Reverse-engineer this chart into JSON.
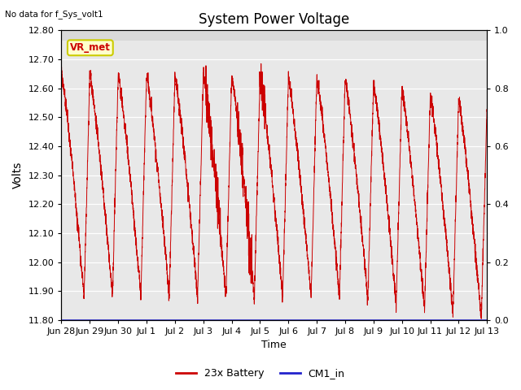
{
  "title": "System Power Voltage",
  "no_data_label": "No data for f_Sys_volt1",
  "ylabel_left": "Volts",
  "xlabel": "Time",
  "ylim_left": [
    11.8,
    12.8
  ],
  "ylim_right": [
    0.0,
    1.0
  ],
  "yticks_left": [
    11.8,
    11.9,
    12.0,
    12.1,
    12.2,
    12.3,
    12.4,
    12.5,
    12.6,
    12.7,
    12.8
  ],
  "yticks_right": [
    0.0,
    0.2,
    0.4,
    0.6,
    0.8,
    1.0
  ],
  "xtick_labels": [
    "Jun 28",
    "Jun 29",
    "Jun 30",
    "Jul 1",
    "Jul 2",
    "Jul 3",
    "Jul 4",
    "Jul 5",
    "Jul 6",
    "Jul 7",
    "Jul 8",
    "Jul 9",
    "Jul 10",
    "Jul 11",
    "Jul 12",
    "Jul 13"
  ],
  "n_days": 15,
  "period": 1.0,
  "bg_color": "#e8e8e8",
  "top_band_color": "#d0d0d0",
  "line_color_battery": "#cc0000",
  "line_color_cm1": "#2222cc",
  "legend_labels": [
    "23x Battery",
    "CM1_in"
  ],
  "vr_met_label": "VR_met",
  "vr_met_bg": "#ffffcc",
  "vr_met_border": "#cccc00",
  "vr_met_text_color": "#cc0000",
  "figsize": [
    6.4,
    4.8
  ],
  "dpi": 100
}
